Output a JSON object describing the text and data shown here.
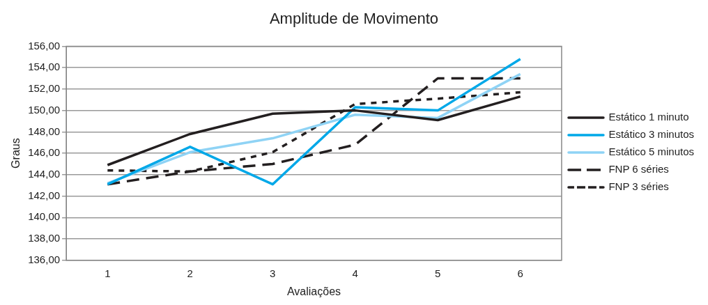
{
  "chart_data": {
    "type": "line",
    "title": "Amplitude de Movimento",
    "xlabel": "Avaliações",
    "ylabel": "Graus",
    "categories": [
      "1",
      "2",
      "3",
      "4",
      "5",
      "6"
    ],
    "series": [
      {
        "name": "Estático 1 minuto",
        "color": "#231f20",
        "line_style": "solid",
        "values": [
          144.9,
          147.8,
          149.7,
          150.0,
          149.1,
          151.3
        ]
      },
      {
        "name": "Estático 3 minutos",
        "color": "#00a8e8",
        "line_style": "solid",
        "values": [
          143.1,
          146.6,
          143.1,
          150.3,
          150.0,
          154.8
        ]
      },
      {
        "name": "Estático 5 minutos",
        "color": "#8fd3f5",
        "line_style": "solid",
        "values": [
          143.2,
          146.1,
          147.4,
          149.6,
          149.3,
          153.4
        ]
      },
      {
        "name": "FNP 6 séries",
        "color": "#231f20",
        "line_style": "dashed",
        "values": [
          143.1,
          144.3,
          145.0,
          146.8,
          153.0,
          153.0
        ]
      },
      {
        "name": "FNP 3 séries",
        "color": "#231f20",
        "line_style": "dotted",
        "values": [
          144.4,
          144.3,
          146.1,
          150.6,
          151.1,
          151.7
        ]
      }
    ],
    "ylim": [
      136,
      156
    ],
    "yticks": [
      {
        "value": 136,
        "label": "136,00"
      },
      {
        "value": 138,
        "label": "138,00"
      },
      {
        "value": 140,
        "label": "140,00"
      },
      {
        "value": 142,
        "label": "142,00"
      },
      {
        "value": 144,
        "label": "144,00"
      },
      {
        "value": 146,
        "label": "146,00"
      },
      {
        "value": 148,
        "label": "148,00"
      },
      {
        "value": 150,
        "label": "150,00"
      },
      {
        "value": 152,
        "label": "152,00"
      },
      {
        "value": 154,
        "label": "154,00"
      },
      {
        "value": 156,
        "label": "156,00"
      }
    ],
    "grid": "y",
    "legend": "right",
    "marker": "none"
  }
}
